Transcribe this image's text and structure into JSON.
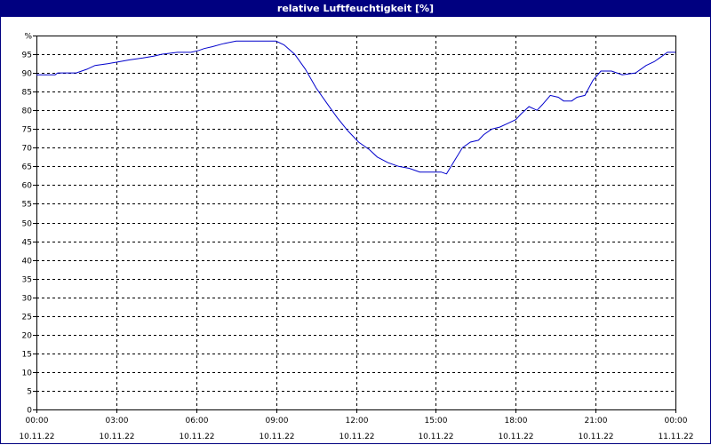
{
  "window": {
    "title": "relative Luftfeuchtigkeit [%]"
  },
  "colors": {
    "title_bg": "#000080",
    "title_fg": "#ffffff",
    "line": "#0000cc",
    "grid": "#000000",
    "axis": "#000000"
  },
  "chart_data": {
    "type": "line",
    "title": "relative Luftfeuchtigkeit [%]",
    "xlabel": "",
    "ylabel": "%",
    "grid": true,
    "ylim": [
      0,
      100
    ],
    "yticks": [
      0,
      5,
      10,
      15,
      20,
      25,
      30,
      35,
      40,
      45,
      50,
      55,
      60,
      65,
      70,
      75,
      80,
      85,
      90,
      95,
      100
    ],
    "ytick_labels": [
      "0",
      "5",
      "10",
      "15",
      "20",
      "25",
      "30",
      "35",
      "40",
      "45",
      "50",
      "55",
      "60",
      "65",
      "70",
      "75",
      "80",
      "85",
      "90",
      "95",
      "%"
    ],
    "xlim": [
      0,
      24
    ],
    "xticks": [
      {
        "hour": 0,
        "time": "00:00",
        "date": "10.11.22"
      },
      {
        "hour": 3,
        "time": "03:00",
        "date": "10.11.22"
      },
      {
        "hour": 6,
        "time": "06:00",
        "date": "10.11.22"
      },
      {
        "hour": 9,
        "time": "09:00",
        "date": "10.11.22"
      },
      {
        "hour": 12,
        "time": "12:00",
        "date": "10.11.22"
      },
      {
        "hour": 15,
        "time": "15:00",
        "date": "10.11.22"
      },
      {
        "hour": 18,
        "time": "18:00",
        "date": "10.11.22"
      },
      {
        "hour": 21,
        "time": "21:00",
        "date": "10.11.22"
      },
      {
        "hour": 24,
        "time": "00:00",
        "date": "11.11.22"
      }
    ],
    "series": [
      {
        "x": [
          0,
          0.7,
          0.8,
          1.5,
          1.9,
          2.2,
          2.7,
          3.1,
          3.5,
          4.0,
          4.4,
          4.7,
          5.3,
          5.8,
          6.1,
          6.3,
          6.6,
          7.0,
          7.5,
          8.0,
          8.6,
          9.0,
          9.3,
          9.7,
          10.1,
          10.5,
          10.9,
          11.3,
          11.7,
          12.1,
          12.5,
          12.8,
          13.2,
          13.6,
          14.0,
          14.4,
          14.8,
          15.2,
          15.4,
          15.7,
          16.0,
          16.3,
          16.6,
          16.8,
          17.1,
          17.4,
          17.7,
          18.0,
          18.2,
          18.5,
          18.8,
          19.0,
          19.3,
          19.6,
          19.8,
          20.1,
          20.3,
          20.6,
          20.9,
          21.2,
          21.6,
          22.0,
          22.5,
          22.9,
          23.2,
          23.4,
          23.7,
          24.0
        ],
        "y": [
          89.5,
          89.5,
          90.0,
          90.0,
          91.0,
          92.0,
          92.5,
          93.0,
          93.5,
          94.0,
          94.5,
          95.0,
          95.5,
          95.5,
          96.0,
          96.5,
          97.0,
          97.8,
          98.5,
          98.5,
          98.5,
          98.5,
          97.5,
          95.0,
          91.0,
          86.0,
          82.0,
          78.0,
          74.5,
          71.5,
          69.5,
          67.5,
          66.0,
          65.0,
          64.5,
          63.5,
          63.5,
          63.5,
          63.0,
          66.5,
          70.0,
          71.5,
          72.0,
          73.5,
          75.0,
          75.5,
          76.5,
          77.5,
          79.0,
          81.0,
          80.0,
          81.5,
          84.0,
          83.5,
          82.5,
          82.5,
          83.5,
          84.0,
          88.0,
          90.5,
          90.5,
          89.5,
          90.0,
          92.0,
          93.0,
          94.0,
          95.5,
          95.5
        ]
      }
    ]
  }
}
